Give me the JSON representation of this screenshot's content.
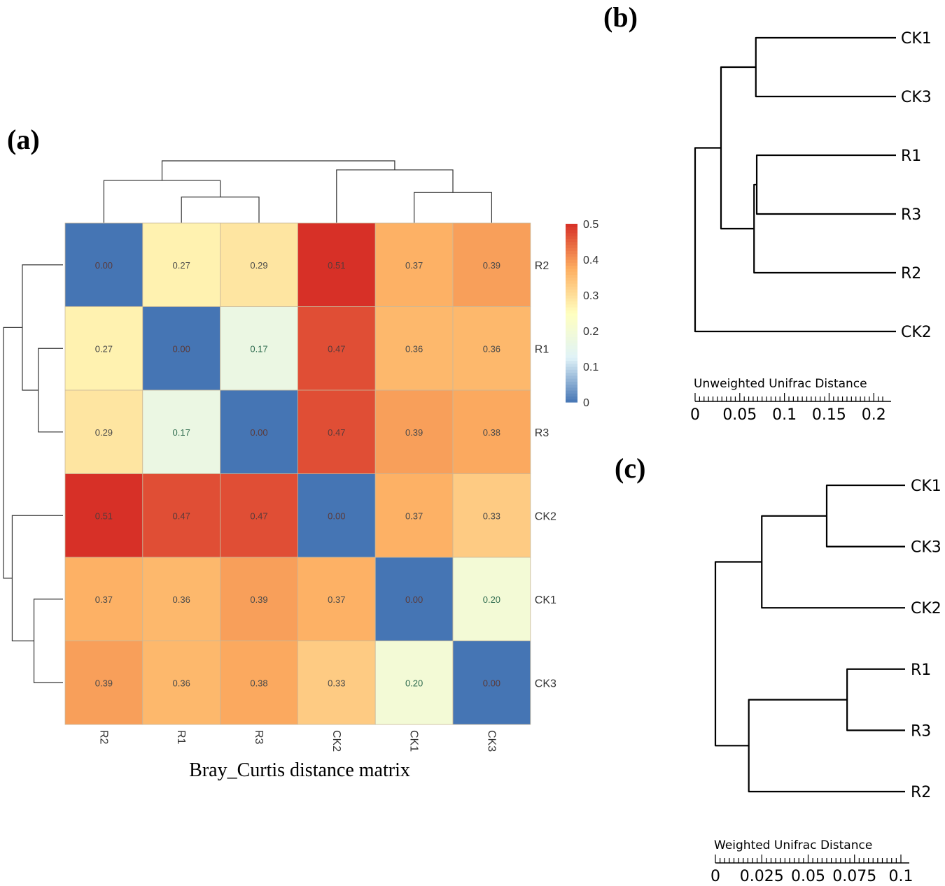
{
  "panel_labels": {
    "a": "(a)",
    "b": "(b)",
    "c": "(c)"
  },
  "chart_data": [
    {
      "type": "heatmap",
      "title": "Bray_Curtis distance matrix",
      "rows": [
        "R2",
        "R1",
        "R3",
        "CK2",
        "CK1",
        "CK3"
      ],
      "columns": [
        "R2",
        "R1",
        "R3",
        "CK2",
        "CK1",
        "CK3"
      ],
      "values": [
        [
          0.0,
          0.27,
          0.29,
          0.51,
          0.37,
          0.39
        ],
        [
          0.27,
          0.0,
          0.17,
          0.47,
          0.36,
          0.36
        ],
        [
          0.29,
          0.17,
          0.0,
          0.47,
          0.39,
          0.38
        ],
        [
          0.51,
          0.47,
          0.47,
          0.0,
          0.37,
          0.33
        ],
        [
          0.37,
          0.36,
          0.39,
          0.37,
          0.0,
          0.2
        ],
        [
          0.39,
          0.36,
          0.38,
          0.33,
          0.2,
          0.0
        ]
      ],
      "cell_labels": [
        [
          "0.00",
          "0.27",
          "0.29",
          "0.51",
          "0.37",
          "0.39"
        ],
        [
          "0.27",
          "0.00",
          "0.17",
          "0.47",
          "0.36",
          "0.36"
        ],
        [
          "0.29",
          "0.17",
          "0.00",
          "0.47",
          "0.39",
          "0.38"
        ],
        [
          "0.51",
          "0.47",
          "0.47",
          "0.00",
          "0.37",
          "0.33"
        ],
        [
          "0.37",
          "0.36",
          "0.39",
          "0.37",
          "0.00",
          "0.20"
        ],
        [
          "0.39",
          "0.36",
          "0.38",
          "0.33",
          "0.20",
          "0.00"
        ]
      ],
      "colorbar": {
        "min": 0,
        "max": 0.5,
        "ticks": [
          0,
          0.1,
          0.2,
          0.3,
          0.4,
          0.5
        ],
        "tick_labels": [
          "0",
          "0.1",
          "0.2",
          "0.3",
          "0.4",
          "0.5"
        ],
        "colors": [
          "#4575b4",
          "#e0f3f8",
          "#ffffbf",
          "#fdae61",
          "#d73027"
        ]
      },
      "dendrogram_merge_heights": [
        {
          "members": [
            "R1",
            "R3"
          ],
          "height": 0.17
        },
        {
          "members": [
            "CK1",
            "CK3"
          ],
          "height": 0.2
        },
        {
          "members": [
            "R2",
            "R1",
            "R3"
          ],
          "height": 0.28
        },
        {
          "members": [
            "CK2",
            "CK1",
            "CK3"
          ],
          "height": 0.35
        },
        {
          "members": [
            "R2",
            "R1",
            "R3",
            "CK2",
            "CK1",
            "CK3"
          ],
          "height": 0.41
        }
      ]
    },
    {
      "type": "dendrogram",
      "title": "Unweighted Unifrac Distance",
      "leaves": [
        "CK1",
        "CK3",
        "R1",
        "R3",
        "R2",
        "CK2"
      ],
      "axis_ticks": [
        0,
        0.05,
        0.1,
        0.15,
        0.2
      ],
      "axis_tick_labels": [
        "0",
        "0.05",
        "0.1",
        "0.15",
        "0.2"
      ],
      "axis_range": [
        0,
        0.21
      ],
      "merge_distances": [
        {
          "members": [
            "R1",
            "R3"
          ],
          "distance": 0.069
        },
        {
          "members": [
            "R1",
            "R3",
            "R2"
          ],
          "distance": 0.066
        },
        {
          "members": [
            "CK1",
            "CK3"
          ],
          "distance": 0.068
        },
        {
          "members": [
            "CK1",
            "CK3",
            "R1",
            "R3",
            "R2"
          ],
          "distance": 0.029
        },
        {
          "members": [
            "all"
          ],
          "distance": 0.0
        }
      ]
    },
    {
      "type": "dendrogram",
      "title": "Weighted Unifrac Distance",
      "leaves": [
        "CK1",
        "CK3",
        "CK2",
        "R1",
        "R3",
        "R2"
      ],
      "axis_ticks": [
        0,
        0.025,
        0.05,
        0.075,
        0.1
      ],
      "axis_tick_labels": [
        "0",
        "0.025",
        "0.05",
        "0.075",
        "0.1"
      ],
      "axis_range": [
        0,
        0.1
      ],
      "merge_distances": [
        {
          "members": [
            "CK1",
            "CK3"
          ],
          "distance": 0.06
        },
        {
          "members": [
            "CK1",
            "CK3",
            "CK2"
          ],
          "distance": 0.025
        },
        {
          "members": [
            "R1",
            "R3"
          ],
          "distance": 0.071
        },
        {
          "members": [
            "R1",
            "R3",
            "R2"
          ],
          "distance": 0.018
        },
        {
          "members": [
            "all"
          ],
          "distance": 0.0
        }
      ]
    }
  ]
}
